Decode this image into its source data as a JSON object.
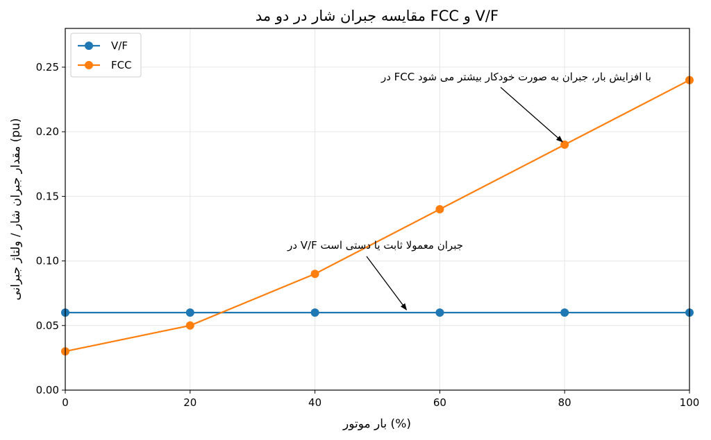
{
  "chart_data": {
    "type": "line",
    "title": "مقایسه جبران شار در دو مد FCC و V/F",
    "xlabel": "بار موتور (%)",
    "ylabel": "مقدار جبران شار / ولتاژ جبرانی (pu)",
    "x": [
      0,
      20,
      40,
      60,
      80,
      100
    ],
    "xlim": [
      0,
      100
    ],
    "ylim": [
      0,
      0.28
    ],
    "xticks": [
      "0",
      "20",
      "40",
      "60",
      "80",
      "100"
    ],
    "yticks": [
      "0.00",
      "0.05",
      "0.10",
      "0.15",
      "0.20",
      "0.25"
    ],
    "grid": true,
    "legend_position": "top-left",
    "series": [
      {
        "name": "V/F",
        "color": "#1f77b4",
        "values": [
          0.06,
          0.06,
          0.06,
          0.06,
          0.06,
          0.06
        ]
      },
      {
        "name": "FCC",
        "color": "#ff7f0e",
        "values": [
          0.03,
          0.05,
          0.09,
          0.14,
          0.19,
          0.24
        ]
      }
    ],
    "annotations": [
      {
        "text": "در FCC با افزایش بار، جبران به صورت خودکار بیشتر می شود",
        "point_x": 80,
        "point_y": 0.19
      },
      {
        "text": "در V/F جبران معمولا ثابت یا دستی است",
        "point_x": 55,
        "point_y": 0.06
      }
    ]
  }
}
